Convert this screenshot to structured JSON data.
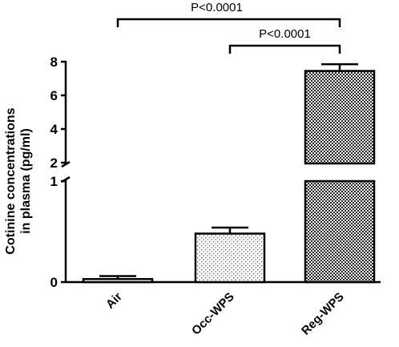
{
  "chart_data": {
    "type": "bar",
    "title": "",
    "xlabel": "",
    "ylabel_lines": [
      "Cotinine concentrations",
      "in plasma (pg/ml)"
    ],
    "unit": "pg/ml",
    "y_axis": {
      "broken": true,
      "lower_segment": {
        "range": [
          0,
          1
        ],
        "ticks": [
          0,
          1
        ]
      },
      "upper_segment": {
        "range": [
          2,
          8
        ],
        "ticks": [
          2,
          4,
          6,
          8
        ]
      }
    },
    "grid": false,
    "legend": "none",
    "categories": [
      "Air",
      "Occ-WPS",
      "Reg-WPS"
    ],
    "values": [
      0.03,
      0.48,
      7.45
    ],
    "errors": [
      0.03,
      0.06,
      0.4
    ],
    "fill_patterns": [
      "white",
      "stippled",
      "checkered"
    ],
    "annotations": [
      {
        "text": "P<0.0001",
        "from": "Air",
        "to": "Reg-WPS"
      },
      {
        "text": "P<0.0001",
        "from": "Occ-WPS",
        "to": "Reg-WPS"
      }
    ],
    "colors": {
      "axis": "#000000",
      "bar_edge": "#000000",
      "background": "#ffffff"
    }
  }
}
